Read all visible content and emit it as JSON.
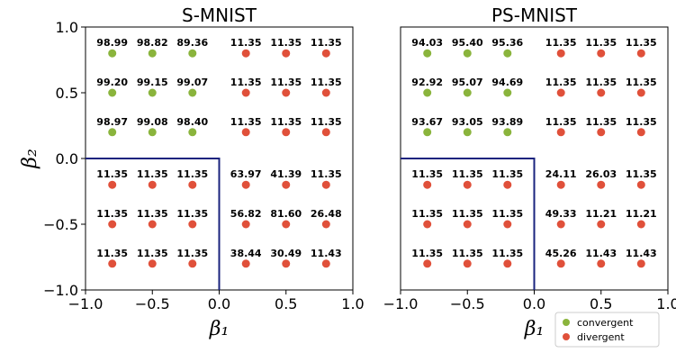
{
  "chart_data": [
    {
      "type": "scatter",
      "title": "S-MNIST",
      "xlabel": "β₁",
      "ylabel": "β₂",
      "xlim": [
        -1.0,
        1.0
      ],
      "ylim": [
        -1.0,
        1.0
      ],
      "xticks": [
        "−1.0",
        "−0.5",
        "0.0",
        "0.5",
        "1.0"
      ],
      "yticks": [
        "−1.0",
        "−0.5",
        "0.0",
        "0.5",
        "1.0"
      ],
      "x": [
        -0.8,
        -0.5,
        -0.2,
        0.2,
        0.5,
        0.8
      ],
      "y": [
        0.8,
        0.5,
        0.2,
        -0.2,
        -0.5,
        -0.8
      ],
      "points": [
        [
          "98.99",
          "98.82",
          "89.36",
          "11.35",
          "11.35",
          "11.35"
        ],
        [
          "99.20",
          "99.15",
          "99.07",
          "11.35",
          "11.35",
          "11.35"
        ],
        [
          "98.97",
          "99.08",
          "98.40",
          "11.35",
          "11.35",
          "11.35"
        ],
        [
          "11.35",
          "11.35",
          "11.35",
          "63.97",
          "41.39",
          "11.35"
        ],
        [
          "11.35",
          "11.35",
          "11.35",
          "56.82",
          "81.60",
          "26.48"
        ],
        [
          "11.35",
          "11.35",
          "11.35",
          "38.44",
          "30.49",
          "11.43"
        ]
      ],
      "status": [
        [
          "convergent",
          "convergent",
          "convergent",
          "divergent",
          "divergent",
          "divergent"
        ],
        [
          "convergent",
          "convergent",
          "convergent",
          "divergent",
          "divergent",
          "divergent"
        ],
        [
          "convergent",
          "convergent",
          "convergent",
          "divergent",
          "divergent",
          "divergent"
        ],
        [
          "divergent",
          "divergent",
          "divergent",
          "divergent",
          "divergent",
          "divergent"
        ],
        [
          "divergent",
          "divergent",
          "divergent",
          "divergent",
          "divergent",
          "divergent"
        ],
        [
          "divergent",
          "divergent",
          "divergent",
          "divergent",
          "divergent",
          "divergent"
        ]
      ],
      "boundary": [
        [
          -1.0,
          0.0
        ],
        [
          0.0,
          0.0
        ],
        [
          0.0,
          -1.0
        ]
      ]
    },
    {
      "type": "scatter",
      "title": "PS-MNIST",
      "xlabel": "β₁",
      "ylabel": "",
      "xlim": [
        -1.0,
        1.0
      ],
      "ylim": [
        -1.0,
        1.0
      ],
      "xticks": [
        "−1.0",
        "−0.5",
        "0.0",
        "0.5",
        "1.0"
      ],
      "yticks": [],
      "x": [
        -0.8,
        -0.5,
        -0.2,
        0.2,
        0.5,
        0.8
      ],
      "y": [
        0.8,
        0.5,
        0.2,
        -0.2,
        -0.5,
        -0.8
      ],
      "points": [
        [
          "94.03",
          "95.40",
          "95.36",
          "11.35",
          "11.35",
          "11.35"
        ],
        [
          "92.92",
          "95.07",
          "94.69",
          "11.35",
          "11.35",
          "11.35"
        ],
        [
          "93.67",
          "93.05",
          "93.89",
          "11.35",
          "11.35",
          "11.35"
        ],
        [
          "11.35",
          "11.35",
          "11.35",
          "24.11",
          "26.03",
          "11.35"
        ],
        [
          "11.35",
          "11.35",
          "11.35",
          "49.33",
          "11.21",
          "11.21"
        ],
        [
          "11.35",
          "11.35",
          "11.35",
          "45.26",
          "11.43",
          "11.43"
        ]
      ],
      "status": [
        [
          "convergent",
          "convergent",
          "convergent",
          "divergent",
          "divergent",
          "divergent"
        ],
        [
          "convergent",
          "convergent",
          "convergent",
          "divergent",
          "divergent",
          "divergent"
        ],
        [
          "convergent",
          "convergent",
          "convergent",
          "divergent",
          "divergent",
          "divergent"
        ],
        [
          "divergent",
          "divergent",
          "divergent",
          "divergent",
          "divergent",
          "divergent"
        ],
        [
          "divergent",
          "divergent",
          "divergent",
          "divergent",
          "divergent",
          "divergent"
        ],
        [
          "divergent",
          "divergent",
          "divergent",
          "divergent",
          "divergent",
          "divergent"
        ]
      ],
      "boundary": [
        [
          -1.0,
          0.0
        ],
        [
          0.0,
          0.0
        ],
        [
          0.0,
          -1.0
        ]
      ]
    }
  ],
  "legend": {
    "position": "bottom-right",
    "entries": [
      {
        "label": "convergent",
        "color": "#8ab43c"
      },
      {
        "label": "divergent",
        "color": "#e0503a"
      }
    ]
  },
  "colors": {
    "convergent": "#8ab43c",
    "divergent": "#e0503a",
    "boundary": "#1a237e"
  }
}
